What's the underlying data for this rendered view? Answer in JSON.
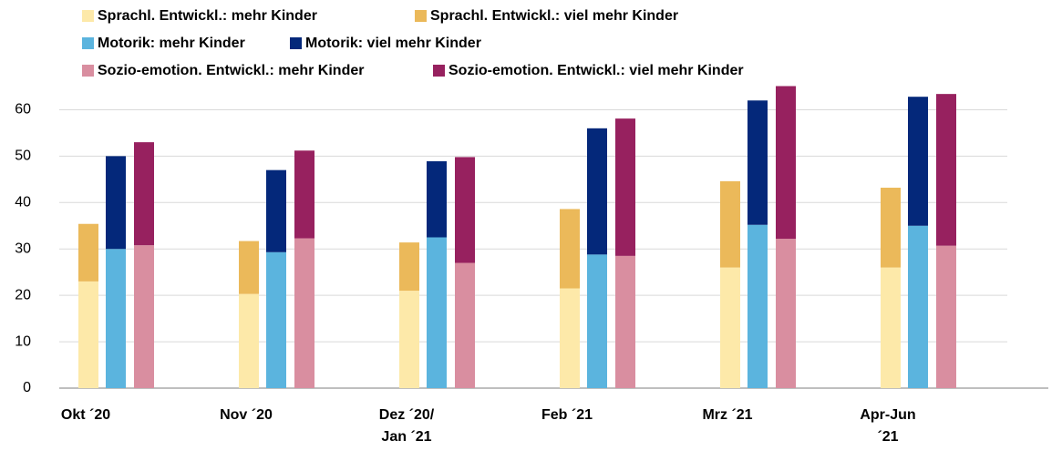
{
  "chart_data": {
    "type": "bar",
    "categories": [
      "Okt ´20",
      "Nov ´20",
      "Dez ´20/\nJan ´21",
      "Feb ´21",
      "Mrz ´21",
      "Apr-Jun\n´21"
    ],
    "series": [
      {
        "name": "Sprachl. Entwickl.: mehr Kinder",
        "color": "#fde9a9",
        "values": [
          23,
          20.3,
          21,
          21.5,
          26,
          26
        ]
      },
      {
        "name": "Sprachl. Entwickl.: viel mehr Kinder",
        "color": "#ebb95a",
        "values": [
          12.4,
          11.4,
          10.4,
          17.1,
          18.6,
          17.2
        ]
      },
      {
        "name": "Motorik: mehr Kinder",
        "color": "#5bb4de",
        "values": [
          30,
          29.3,
          32.5,
          28.8,
          35.2,
          35
        ]
      },
      {
        "name": "Motorik: viel mehr Kinder",
        "color": "#04287a",
        "values": [
          20,
          17.7,
          16.4,
          27.2,
          26.8,
          27.8
        ]
      },
      {
        "name": "Sozio-emotion. Entwickl.: mehr Kinder",
        "color": "#d98ea0",
        "values": [
          30.8,
          32.3,
          27,
          28.5,
          32.2,
          30.7
        ]
      },
      {
        "name": "Sozio-emotion. Entwickl.: viel mehr Kinder",
        "color": "#97215f",
        "values": [
          22.2,
          18.9,
          22.8,
          29.6,
          32.9,
          32.7
        ]
      }
    ],
    "ylim": [
      0,
      65
    ],
    "yticks": [
      0,
      10,
      20,
      30,
      40,
      50,
      60
    ],
    "grid": true
  }
}
